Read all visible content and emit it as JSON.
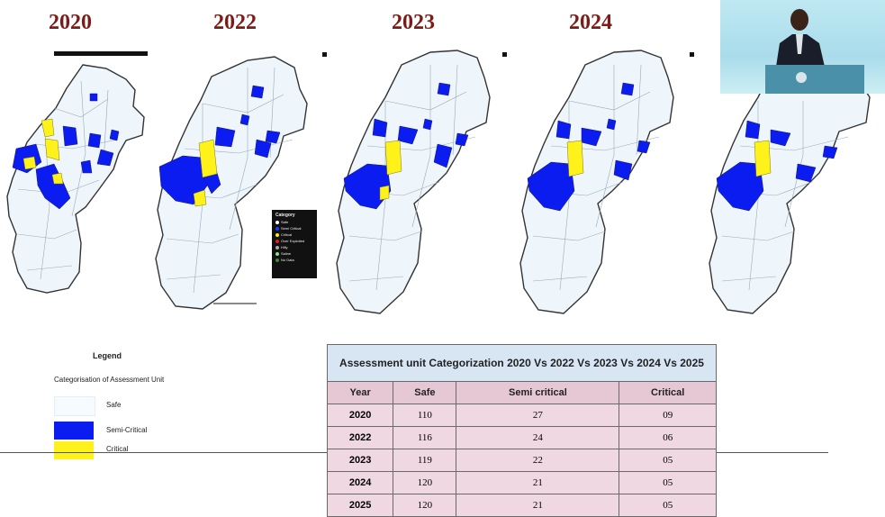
{
  "years": [
    "2020",
    "2022",
    "2023",
    "2024"
  ],
  "mini_legend": {
    "title": "Category",
    "items": [
      "Safe",
      "Semi Critical",
      "Critical",
      "Over Exploited",
      "Hilly",
      "Saline",
      "No Data"
    ]
  },
  "legend": {
    "title": "Legend",
    "subtitle": "Categorisation of Assessment Unit",
    "items": [
      {
        "label": "Safe",
        "color": "#f6fbff"
      },
      {
        "label": "Semi-Critical",
        "color": "#0a1cf0"
      },
      {
        "label": "Critical",
        "color": "#fff21a"
      }
    ]
  },
  "table": {
    "caption": "Assessment unit Categorization 2020 Vs 2022 Vs 2023 Vs 2024 Vs 2025",
    "headers": [
      "Year",
      "Safe",
      "Semi critical",
      "Critical"
    ],
    "rows": [
      [
        "2020",
        "110",
        "27",
        "09"
      ],
      [
        "2022",
        "116",
        "24",
        "06"
      ],
      [
        "2023",
        "119",
        "22",
        "05"
      ],
      [
        "2024",
        "120",
        "21",
        "05"
      ],
      [
        "2025",
        "120",
        "21",
        "05"
      ]
    ]
  },
  "colors": {
    "safe_fill": "#eef6fb",
    "semi_critical": "#0a1cf0",
    "critical": "#fff21a",
    "outline": "#333333",
    "year_title": "#7a1c18"
  }
}
